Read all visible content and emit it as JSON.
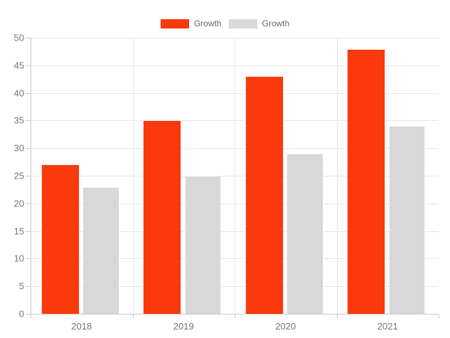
{
  "page": {
    "background": "#ffffff"
  },
  "legend": {
    "position": "top",
    "items": [
      {
        "label": "Growth",
        "color": "#fa390c"
      },
      {
        "label": "Growth",
        "color": "#d8d8d8"
      }
    ]
  },
  "chart_data": {
    "type": "bar",
    "title": "",
    "xlabel": "",
    "ylabel": "",
    "categories": [
      "2018",
      "2019",
      "2020",
      "2021"
    ],
    "series": [
      {
        "name": "Growth",
        "color": "#fa390c",
        "values": [
          27,
          35,
          43,
          48
        ]
      },
      {
        "name": "Growth",
        "color": "#d8d8d8",
        "values": [
          23,
          25,
          29,
          34
        ]
      }
    ],
    "ylim": [
      0,
      50
    ],
    "ytick_step": 5,
    "y_tick_labels": [
      "0",
      "5",
      "10",
      "15",
      "20",
      "25",
      "30",
      "35",
      "40",
      "45",
      "50"
    ],
    "grid": true,
    "legend_position": "top"
  },
  "colors": {
    "gridline": "#e6e6e6",
    "axis_line": "#c9c9c9",
    "tick_label_text": "#757575",
    "legend_text": "#666666"
  }
}
